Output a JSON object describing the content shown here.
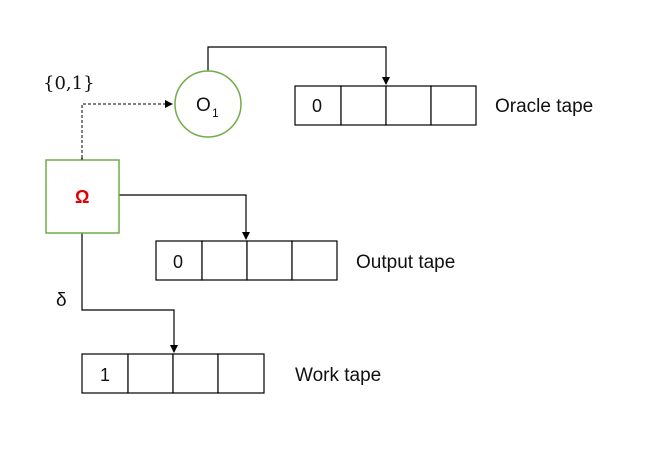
{
  "colors": {
    "oracle_circle_stroke": "#70ad47",
    "control_box_stroke": "#70ad47",
    "omega_color": "#e00000",
    "line": "#000000"
  },
  "oracle": {
    "symbol": "O",
    "subscript": "1"
  },
  "oracle_alphabet": "{0,1}",
  "control": {
    "symbol": "Ω"
  },
  "delta_label": "δ",
  "tapes": {
    "oracle": {
      "label": "Oracle tape",
      "cells": [
        "0",
        "",
        "",
        ""
      ]
    },
    "output": {
      "label": "Output tape",
      "cells": [
        "0",
        "",
        "",
        ""
      ]
    },
    "work": {
      "label": "Work tape",
      "cells": [
        "1",
        "",
        "",
        ""
      ]
    }
  }
}
